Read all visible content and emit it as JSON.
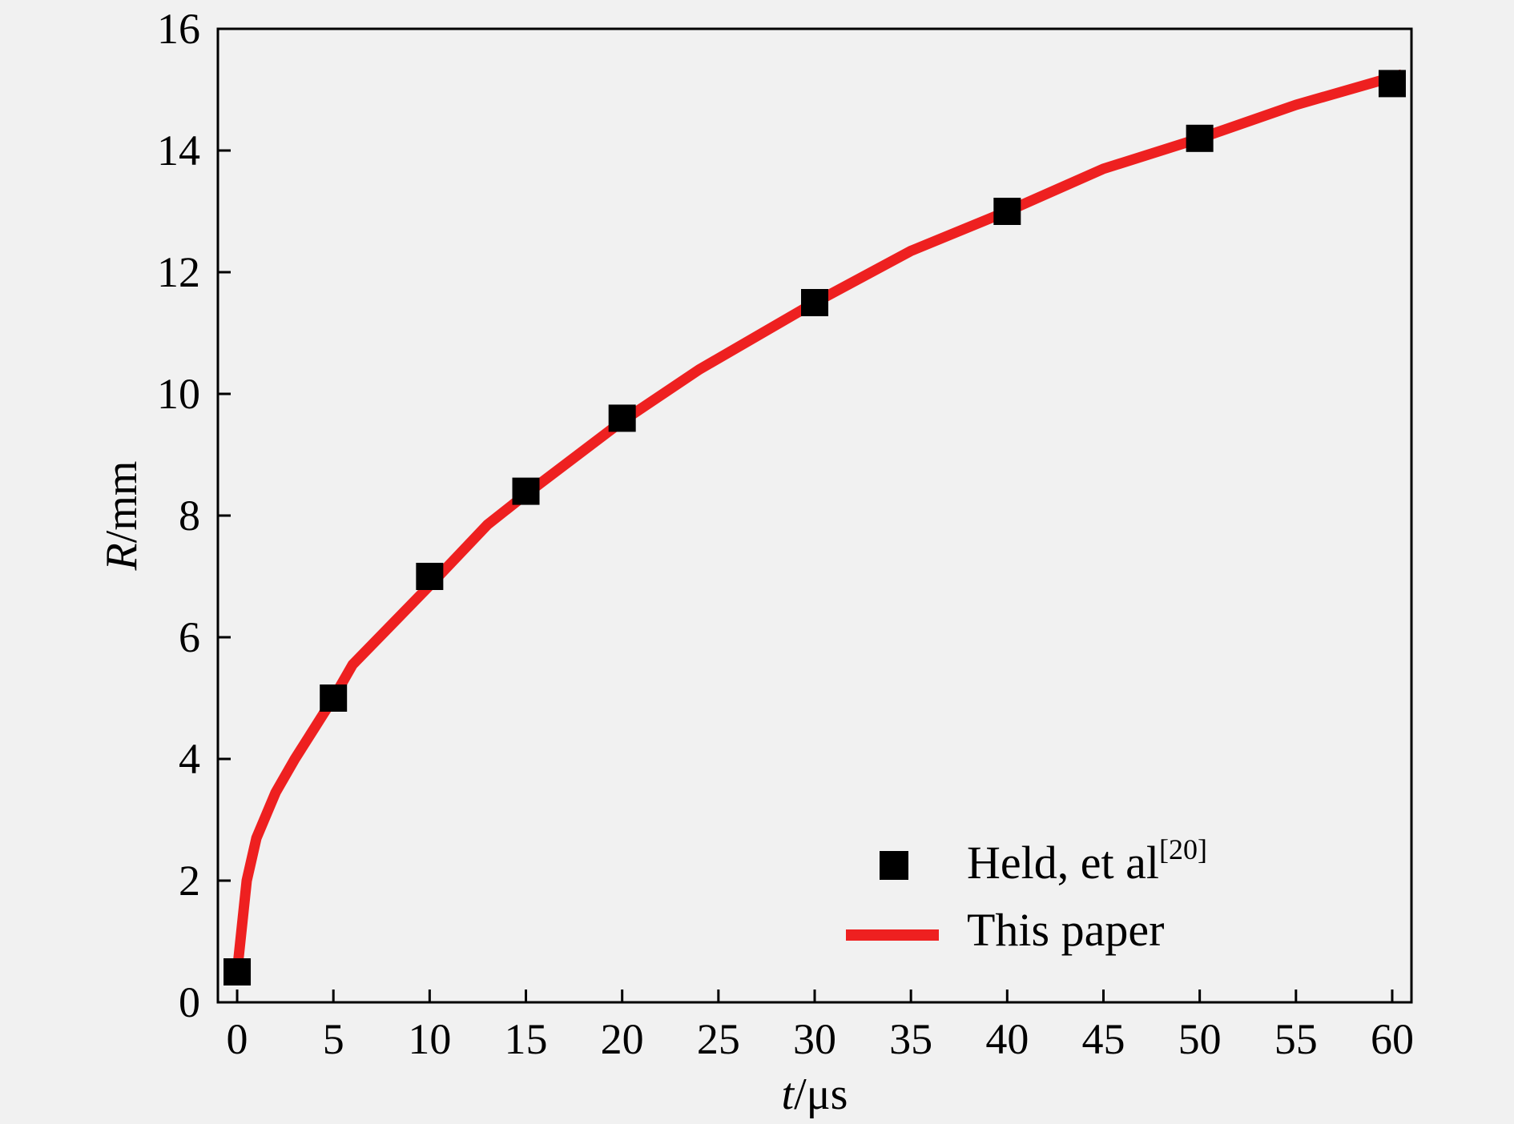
{
  "chart_data": {
    "type": "line",
    "xlabel": {
      "var": "t",
      "unit": "/μs"
    },
    "ylabel": {
      "var": "R",
      "unit": "/mm"
    },
    "xlim": [
      -1,
      61
    ],
    "ylim": [
      0,
      16
    ],
    "xticks": [
      0,
      5,
      10,
      15,
      20,
      25,
      30,
      35,
      40,
      45,
      50,
      55,
      60
    ],
    "yticks": [
      0,
      2,
      4,
      6,
      8,
      10,
      12,
      14,
      16
    ],
    "grid": false,
    "legend_position": "bottom-right",
    "series": [
      {
        "name": "Held, et al",
        "name_sup": "[20]",
        "kind": "scatter",
        "marker": "square",
        "color": "#000000",
        "x": [
          0,
          5,
          10,
          15,
          20,
          30,
          40,
          50,
          60
        ],
        "y": [
          0.5,
          5.0,
          7.0,
          8.4,
          9.6,
          11.5,
          13.0,
          14.2,
          15.1
        ]
      },
      {
        "name": "This paper",
        "kind": "line",
        "color": "#ee2020",
        "x": [
          0,
          0.5,
          1,
          2,
          3,
          4,
          5,
          6,
          8,
          10,
          13,
          15,
          20,
          24,
          30,
          35,
          40,
          45,
          50,
          55,
          60.5
        ],
        "y": [
          0.5,
          2.0,
          2.7,
          3.45,
          4.0,
          4.5,
          5.0,
          5.55,
          6.2,
          6.85,
          7.85,
          8.35,
          9.55,
          10.4,
          11.5,
          12.35,
          13.0,
          13.7,
          14.2,
          14.75,
          15.25
        ]
      }
    ]
  }
}
